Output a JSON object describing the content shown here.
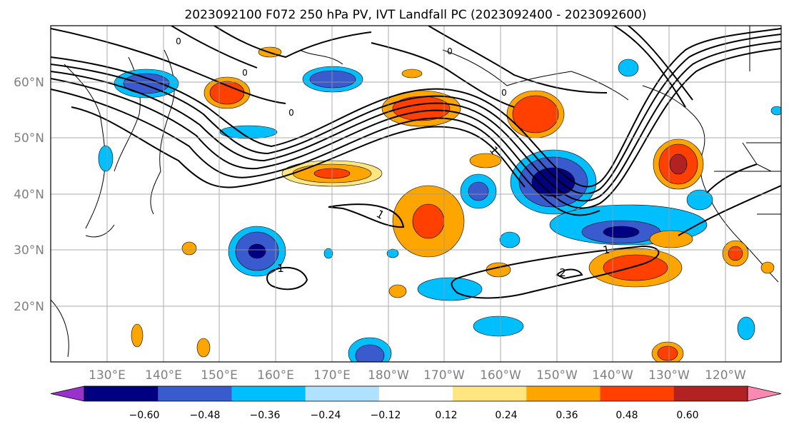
{
  "title": "2023092100 F072 250 hPa PV, IVT Landfall PC (2023092400 - 2023092600)",
  "map": {
    "lat_labels": [
      "60°N",
      "50°N",
      "40°N",
      "30°N",
      "20°N"
    ],
    "lon_labels": [
      "130°E",
      "140°E",
      "150°E",
      "160°E",
      "170°E",
      "180°W",
      "170°W",
      "160°W",
      "150°W",
      "140°W",
      "130°W",
      "120°W"
    ],
    "contour_labels": [
      "1",
      "1",
      "1",
      "1",
      "2",
      "0",
      "0",
      "0",
      "0",
      "0"
    ],
    "contour_label_colors": {
      "line": "#000000"
    },
    "label_color": "#808080",
    "grid": true
  },
  "colorbar": {
    "colors": [
      "#9932cc",
      "#000080",
      "#3a5bcd",
      "#00bfff",
      "#b0e2ff",
      "#ffffff",
      "#ffe680",
      "#ffa500",
      "#ff4000",
      "#b22222",
      "#ff88b0"
    ],
    "tick_labels": [
      "−0.60",
      "−0.48",
      "−0.36",
      "−0.24",
      "−0.12",
      "0.12",
      "0.24",
      "0.36",
      "0.48",
      "0.60"
    ]
  }
}
